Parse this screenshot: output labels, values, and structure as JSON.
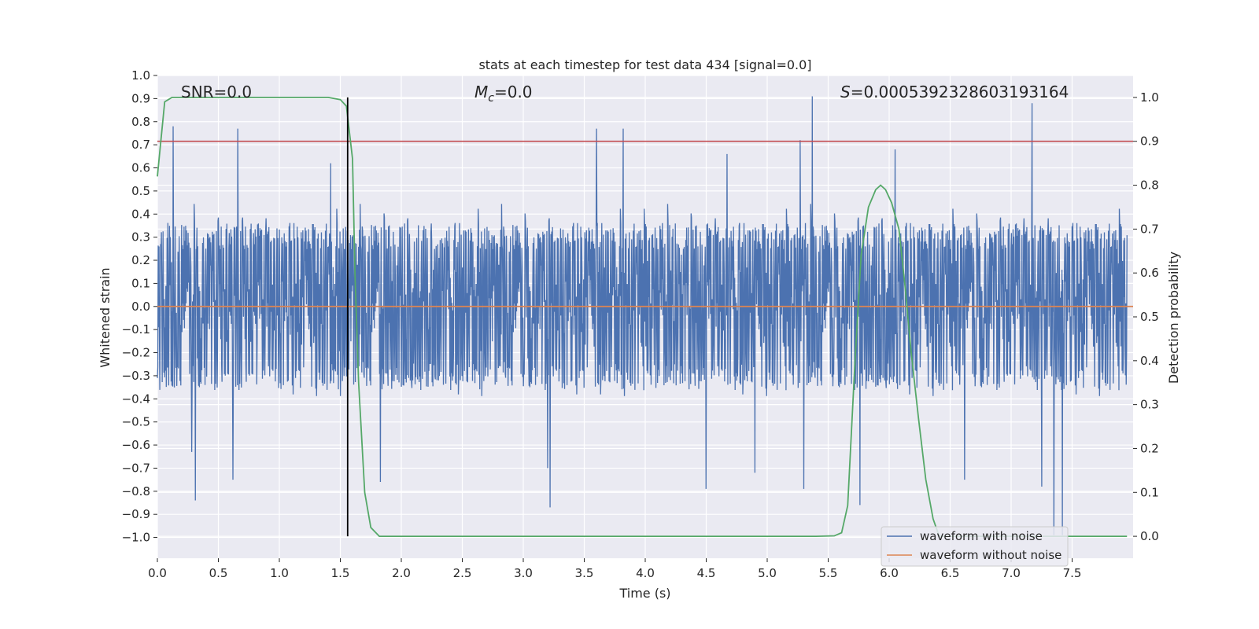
{
  "chart_data": {
    "type": "line",
    "title": "stats at each timestep for test data 434 [signal=0.0]",
    "xlabel": "Time (s)",
    "ylabel_left": "Whitened strain",
    "ylabel_right": "Detection probability",
    "xlim": [
      0.0,
      8.0
    ],
    "ylim_left": [
      -1.09,
      1.0
    ],
    "ylim_right": [
      -0.05,
      1.05
    ],
    "x_ticks": [
      "0.0",
      "0.5",
      "1.0",
      "1.5",
      "2.0",
      "2.5",
      "3.0",
      "3.5",
      "4.0",
      "4.5",
      "5.0",
      "5.5",
      "6.0",
      "6.5",
      "7.0",
      "7.5"
    ],
    "x_tick_values": [
      0,
      0.5,
      1,
      1.5,
      2,
      2.5,
      3,
      3.5,
      4,
      4.5,
      5,
      5.5,
      6,
      6.5,
      7,
      7.5
    ],
    "y_left_ticks": [
      "1.0",
      "0.9",
      "0.8",
      "0.7",
      "0.6",
      "0.5",
      "0.4",
      "0.3",
      "0.2",
      "0.1",
      "0.0",
      "−0.1",
      "−0.2",
      "−0.3",
      "−0.4",
      "−0.5",
      "−0.6",
      "−0.7",
      "−0.8",
      "−0.9",
      "−1.0"
    ],
    "y_left_tick_values": [
      1.0,
      0.9,
      0.8,
      0.7,
      0.6,
      0.5,
      0.4,
      0.3,
      0.2,
      0.1,
      0.0,
      -0.1,
      -0.2,
      -0.3,
      -0.4,
      -0.5,
      -0.6,
      -0.7,
      -0.8,
      -0.9,
      -1.0
    ],
    "y_right_ticks": [
      "1.0",
      "0.9",
      "0.8",
      "0.7",
      "0.6",
      "0.5",
      "0.4",
      "0.3",
      "0.2",
      "0.1",
      "0.0"
    ],
    "y_right_tick_values": [
      1.0,
      0.9,
      0.8,
      0.7,
      0.6,
      0.5,
      0.4,
      0.3,
      0.2,
      0.1,
      0.0
    ],
    "annotations": {
      "snr": "SNR=0.0",
      "mc_symbol": "M",
      "mc_sub": "c",
      "mc_value": "=0.0",
      "s_symbol": "S",
      "s_value": "=0.0005392328603193164"
    },
    "threshold": 0.9,
    "marker_time": 1.56,
    "noise_series": {
      "name": "waveform with noise",
      "color": "#4c72b0",
      "core_amplitude": 0.33,
      "peaks": [
        {
          "t": 0.13,
          "v": 0.78
        },
        {
          "t": 0.66,
          "v": 0.77
        },
        {
          "t": 3.6,
          "v": 0.77
        },
        {
          "t": 3.82,
          "v": 0.77
        },
        {
          "t": 5.37,
          "v": 0.91
        },
        {
          "t": 7.17,
          "v": 0.88
        },
        {
          "t": 5.27,
          "v": 0.72
        },
        {
          "t": 1.42,
          "v": 0.62
        },
        {
          "t": 6.05,
          "v": 0.68
        },
        {
          "t": 4.67,
          "v": 0.66
        },
        {
          "t": 0.31,
          "v": -0.84
        },
        {
          "t": 3.22,
          "v": -0.87
        },
        {
          "t": 5.76,
          "v": -0.86
        },
        {
          "t": 7.35,
          "v": -0.99
        },
        {
          "t": 7.42,
          "v": -0.99
        },
        {
          "t": 3.2,
          "v": -0.7
        },
        {
          "t": 4.5,
          "v": -0.79
        },
        {
          "t": 0.62,
          "v": -0.75
        },
        {
          "t": 5.3,
          "v": -0.79
        },
        {
          "t": 1.83,
          "v": -0.76
        },
        {
          "t": 6.62,
          "v": -0.75
        },
        {
          "t": 7.25,
          "v": -0.78
        },
        {
          "t": 0.28,
          "v": -0.63
        },
        {
          "t": 4.9,
          "v": -0.72
        }
      ]
    },
    "clean_series": {
      "name": "waveform without noise",
      "color": "#dd8452",
      "value": 0.0
    },
    "probability_series": {
      "name": "detection probability",
      "color": "#55a868",
      "x": [
        0.0,
        0.06,
        0.12,
        0.2,
        0.4,
        0.8,
        1.2,
        1.4,
        1.5,
        1.55,
        1.6,
        1.62,
        1.65,
        1.7,
        1.75,
        1.82,
        1.9,
        2.5,
        3.5,
        4.5,
        5.4,
        5.55,
        5.61,
        5.66,
        5.72,
        5.77,
        5.83,
        5.89,
        5.93,
        5.97,
        6.02,
        6.08,
        6.13,
        6.18,
        6.24,
        6.3,
        6.36,
        6.41,
        6.5,
        7.0,
        7.5,
        7.95
      ],
      "y": [
        0.82,
        0.99,
        1.0,
        1.0,
        1.0,
        1.0,
        1.0,
        1.0,
        0.995,
        0.98,
        0.86,
        0.6,
        0.35,
        0.1,
        0.02,
        0.0,
        0.0,
        0.0,
        0.0,
        0.0,
        0.0,
        0.001,
        0.008,
        0.07,
        0.4,
        0.64,
        0.75,
        0.79,
        0.8,
        0.79,
        0.76,
        0.7,
        0.57,
        0.42,
        0.27,
        0.13,
        0.04,
        0.0,
        0.0,
        0.0,
        0.0,
        0.0
      ]
    },
    "legend": {
      "position": "lower-right",
      "entries": [
        {
          "label": "waveform with noise",
          "color": "#4c72b0"
        },
        {
          "label": "waveform without noise",
          "color": "#dd8452"
        }
      ]
    },
    "colors": {
      "plot_bg": "#eaeaf2",
      "grid": "#ffffff",
      "threshold": "#c44e52",
      "marker": "#000000"
    }
  }
}
